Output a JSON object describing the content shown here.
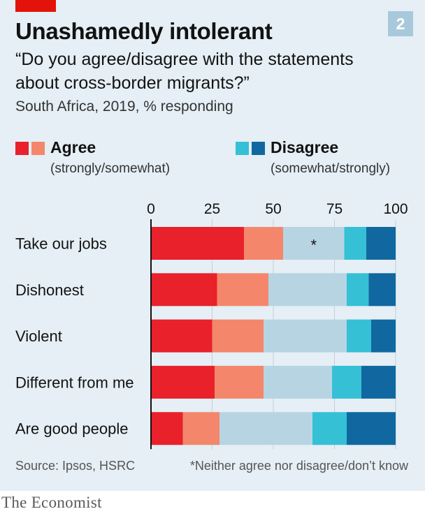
{
  "chart_number": "2",
  "title": "Unashamedly intolerant",
  "subtitle": "“Do you agree/disagree with the statements about cross-border migrants?”",
  "note": "South Africa, 2019, % responding",
  "legend": {
    "agree": {
      "label": "Agree",
      "sub": "(strongly/somewhat)"
    },
    "disagree": {
      "label": "Disagree",
      "sub": "(somewhat/strongly)"
    }
  },
  "colors": {
    "strongly_agree": "#e8212b",
    "somewhat_agree": "#f4876b",
    "neither": "#b7d4e3",
    "somewhat_disagree": "#35c0d6",
    "strongly_disagree": "#1168a0"
  },
  "source": "Source: Ipsos, HSRC",
  "footnote": "*Neither agree nor disagree/don’t know",
  "brand": "The Economist",
  "chart_data": {
    "type": "bar",
    "orientation": "horizontal",
    "stacked": true,
    "categories": [
      "Take our jobs",
      "Dishonest",
      "Violent",
      "Different from me",
      "Are good people"
    ],
    "series": [
      {
        "name": "Agree (strongly)",
        "color": "#e8212b",
        "values": [
          38,
          27,
          25,
          26,
          13
        ]
      },
      {
        "name": "Agree (somewhat)",
        "color": "#f4876b",
        "values": [
          16,
          21,
          21,
          20,
          15
        ]
      },
      {
        "name": "*",
        "color": "#b7d4e3",
        "values": [
          25,
          32,
          34,
          28,
          38
        ]
      },
      {
        "name": "Disagree (somewhat)",
        "color": "#35c0d6",
        "values": [
          9,
          9,
          10,
          12,
          14
        ]
      },
      {
        "name": "Disagree (strongly)",
        "color": "#1168a0",
        "values": [
          12,
          11,
          10,
          14,
          20
        ]
      }
    ],
    "xlim": [
      0,
      100
    ],
    "xticks": [
      0,
      25,
      50,
      75,
      100
    ],
    "bar_annotation": {
      "row": 0,
      "series": 2,
      "text": "*"
    },
    "grid": true,
    "legend_position": "top"
  }
}
